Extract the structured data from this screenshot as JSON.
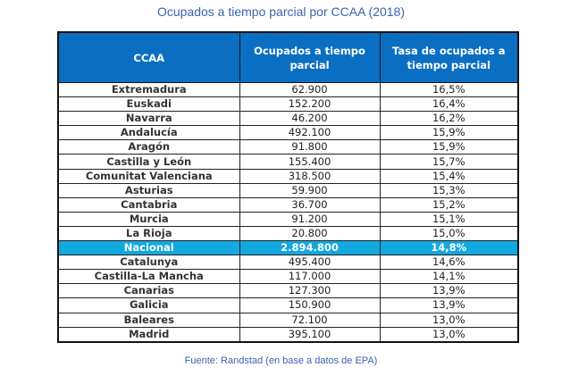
{
  "chart_data": {
    "type": "table",
    "title": "Ocupados a tiempo parcial por CCAA (2018)",
    "columns": [
      "CCAA",
      "Ocupados a tiempo parcial",
      "Tasa de ocupados a tiempo parcial"
    ],
    "rows": [
      [
        "Extremadura",
        "62.900",
        "16,5%"
      ],
      [
        "Euskadi",
        "152.200",
        "16,4%"
      ],
      [
        "Navarra",
        "46.200",
        "16,2%"
      ],
      [
        "Andalucía",
        "492.100",
        "15,9%"
      ],
      [
        "Aragón",
        "91.800",
        "15,9%"
      ],
      [
        "Castilla y León",
        "155.400",
        "15,7%"
      ],
      [
        "Comunitat Valenciana",
        "318.500",
        "15,4%"
      ],
      [
        "Asturias",
        "59.900",
        "15,3%"
      ],
      [
        "Cantabria",
        "36.700",
        "15,2%"
      ],
      [
        "Murcia",
        "91.200",
        "15,1%"
      ],
      [
        "La Rioja",
        "20.800",
        "15,0%"
      ],
      [
        "Nacional",
        "2.894.800",
        "14,8%"
      ],
      [
        "Catalunya",
        "495.400",
        "14,6%"
      ],
      [
        "Castilla-La Mancha",
        "117.000",
        "14,1%"
      ],
      [
        "Canarias",
        "127.300",
        "13,9%"
      ],
      [
        "Galicia",
        "150.900",
        "13,9%"
      ],
      [
        "Baleares",
        "72.100",
        "13,0%"
      ],
      [
        "Madrid",
        "395.100",
        "13,0%"
      ]
    ],
    "highlight_row": "Nacional",
    "source": "Fuente: Randstad (en base a datos de EPA)"
  },
  "colors": {
    "header": "#0a6fc2",
    "highlight": "#12a8e0",
    "title": "#3a63b0"
  }
}
